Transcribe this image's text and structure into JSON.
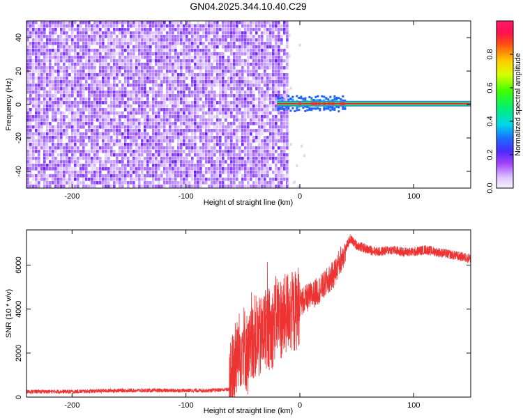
{
  "title": "GN04.2025.344.10.40.C29",
  "chart_data": [
    {
      "type": "heatmap",
      "xlabel": "Height of straight line (km)",
      "ylabel": "Frequency (Hz)",
      "xlim": [
        -240,
        150
      ],
      "ylim": [
        -50,
        50
      ],
      "xticks": [
        -200,
        -100,
        0,
        100
      ],
      "yticks": [
        -40,
        -20,
        0,
        20,
        40
      ],
      "noise_region_x": [
        -240,
        -12
      ],
      "signal_line_frequency": 0.5,
      "signal_start_x": -20,
      "colorbar": {
        "label": "Normalized spectral amplitude",
        "range": [
          0.0,
          1.0
        ],
        "ticks": [
          0.0,
          0.2,
          0.4,
          0.6,
          0.8
        ]
      }
    },
    {
      "type": "line",
      "xlabel": "Height of straight line (km)",
      "ylabel": "SNR (10 * v/v)",
      "xlim": [
        -240,
        150
      ],
      "ylim": [
        0,
        7600
      ],
      "xticks": [
        -200,
        -100,
        0,
        100
      ],
      "yticks": [
        0,
        2000,
        4000,
        6000
      ],
      "color": "#ee3333",
      "series": [
        {
          "name": "SNR",
          "x": [
            -240,
            -200,
            -160,
            -120,
            -100,
            -80,
            -62,
            -58,
            -50,
            -45,
            -40,
            -35,
            -30,
            -25,
            -20,
            -15,
            -10,
            -5,
            0,
            10,
            20,
            30,
            40,
            44,
            50,
            60,
            70,
            80,
            90,
            100,
            110,
            120,
            130,
            140,
            150
          ],
          "y": [
            250,
            250,
            300,
            300,
            300,
            300,
            350,
            1400,
            2500,
            1800,
            2800,
            2600,
            3200,
            3000,
            3800,
            3500,
            4000,
            3800,
            4300,
            4600,
            5000,
            5600,
            6700,
            7200,
            6900,
            6700,
            6600,
            6700,
            6600,
            6600,
            6700,
            6600,
            6500,
            6400,
            6300
          ]
        }
      ]
    }
  ]
}
